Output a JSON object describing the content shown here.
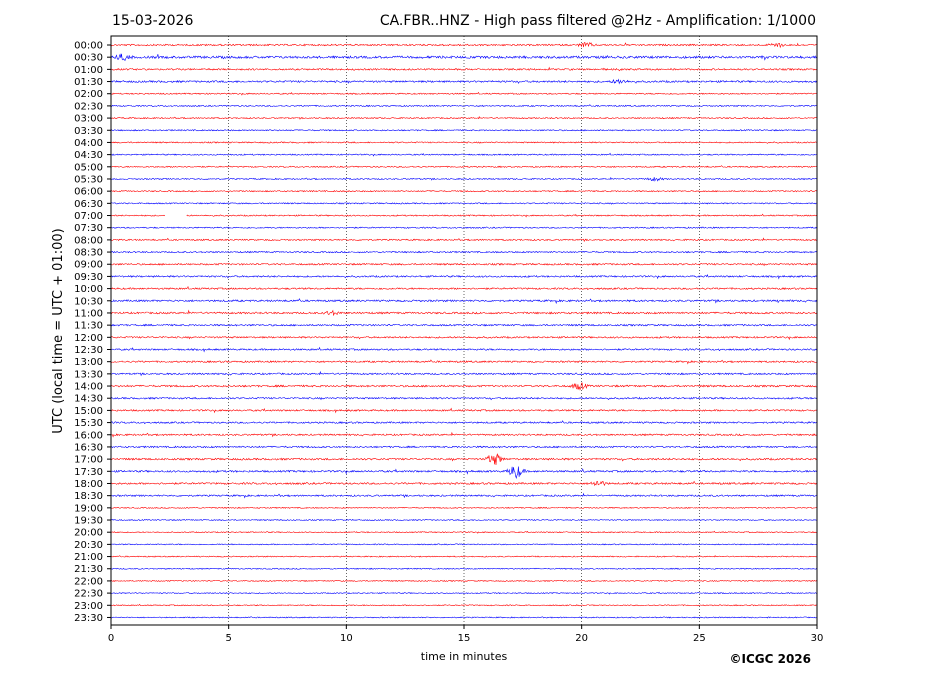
{
  "header": {
    "date": "15-03-2026",
    "title": "CA.FBR..HNZ - High pass filtered @2Hz - Amplification: 1/1000"
  },
  "footer": {
    "copyright": "©ICGC 2026"
  },
  "chart_data": {
    "type": "line",
    "title": "CA.FBR..HNZ - High pass filtered @2Hz - Amplification: 1/1000",
    "xlabel": "time in minutes",
    "ylabel": "UTC (local time = UTC + 01:00)",
    "xlim": [
      0,
      30
    ],
    "x_ticks": [
      0,
      5,
      10,
      15,
      20,
      25,
      30
    ],
    "grid": "vertical dotted at each x tick",
    "trace_colors": [
      "#ff0000",
      "#0000ff"
    ],
    "rows": [
      "00:00",
      "00:30",
      "01:00",
      "01:30",
      "02:00",
      "02:30",
      "03:00",
      "03:30",
      "04:00",
      "04:30",
      "05:00",
      "05:30",
      "06:00",
      "06:30",
      "07:00",
      "07:30",
      "08:00",
      "08:30",
      "09:00",
      "09:30",
      "10:00",
      "10:30",
      "11:00",
      "11:30",
      "12:00",
      "12:30",
      "13:00",
      "13:30",
      "14:00",
      "14:30",
      "15:00",
      "15:30",
      "16:00",
      "16:30",
      "17:00",
      "17:30",
      "18:00",
      "18:30",
      "19:00",
      "19:30",
      "20:00",
      "20:30",
      "21:00",
      "21:30",
      "22:00",
      "22:30",
      "23:00",
      "23:30"
    ],
    "row_activity": [
      0.5,
      0.9,
      0.5,
      0.6,
      0.3,
      0.3,
      0.3,
      0.3,
      0.3,
      0.3,
      0.3,
      0.3,
      0.3,
      0.3,
      0.3,
      0.3,
      0.4,
      0.4,
      0.5,
      0.5,
      0.5,
      0.6,
      0.6,
      0.5,
      0.5,
      0.5,
      0.5,
      0.5,
      0.6,
      0.5,
      0.5,
      0.5,
      0.5,
      0.5,
      0.6,
      0.6,
      0.6,
      0.5,
      0.2,
      0.2,
      0.2,
      0.2,
      0.2,
      0.2,
      0.2,
      0.2,
      0.2,
      0.2
    ],
    "events": [
      {
        "row": "00:00",
        "minute": 20.2,
        "amplitude": 0.35
      },
      {
        "row": "00:00",
        "minute": 28.3,
        "amplitude": 0.3
      },
      {
        "row": "00:30",
        "minute": 0.5,
        "amplitude": 0.4
      },
      {
        "row": "01:30",
        "minute": 21.6,
        "amplitude": 0.3
      },
      {
        "row": "05:30",
        "minute": 23.1,
        "amplitude": 0.25
      },
      {
        "row": "11:00",
        "minute": 9.4,
        "amplitude": 0.3
      },
      {
        "row": "14:00",
        "minute": 19.9,
        "amplitude": 0.5
      },
      {
        "row": "17:00",
        "minute": 16.3,
        "amplitude": 0.9
      },
      {
        "row": "17:30",
        "minute": 17.2,
        "amplitude": 1.0
      },
      {
        "row": "18:00",
        "minute": 20.7,
        "amplitude": 0.4
      }
    ],
    "gaps": [
      {
        "row": "07:00",
        "from_minute": 2.3,
        "to_minute": 3.2
      }
    ]
  }
}
